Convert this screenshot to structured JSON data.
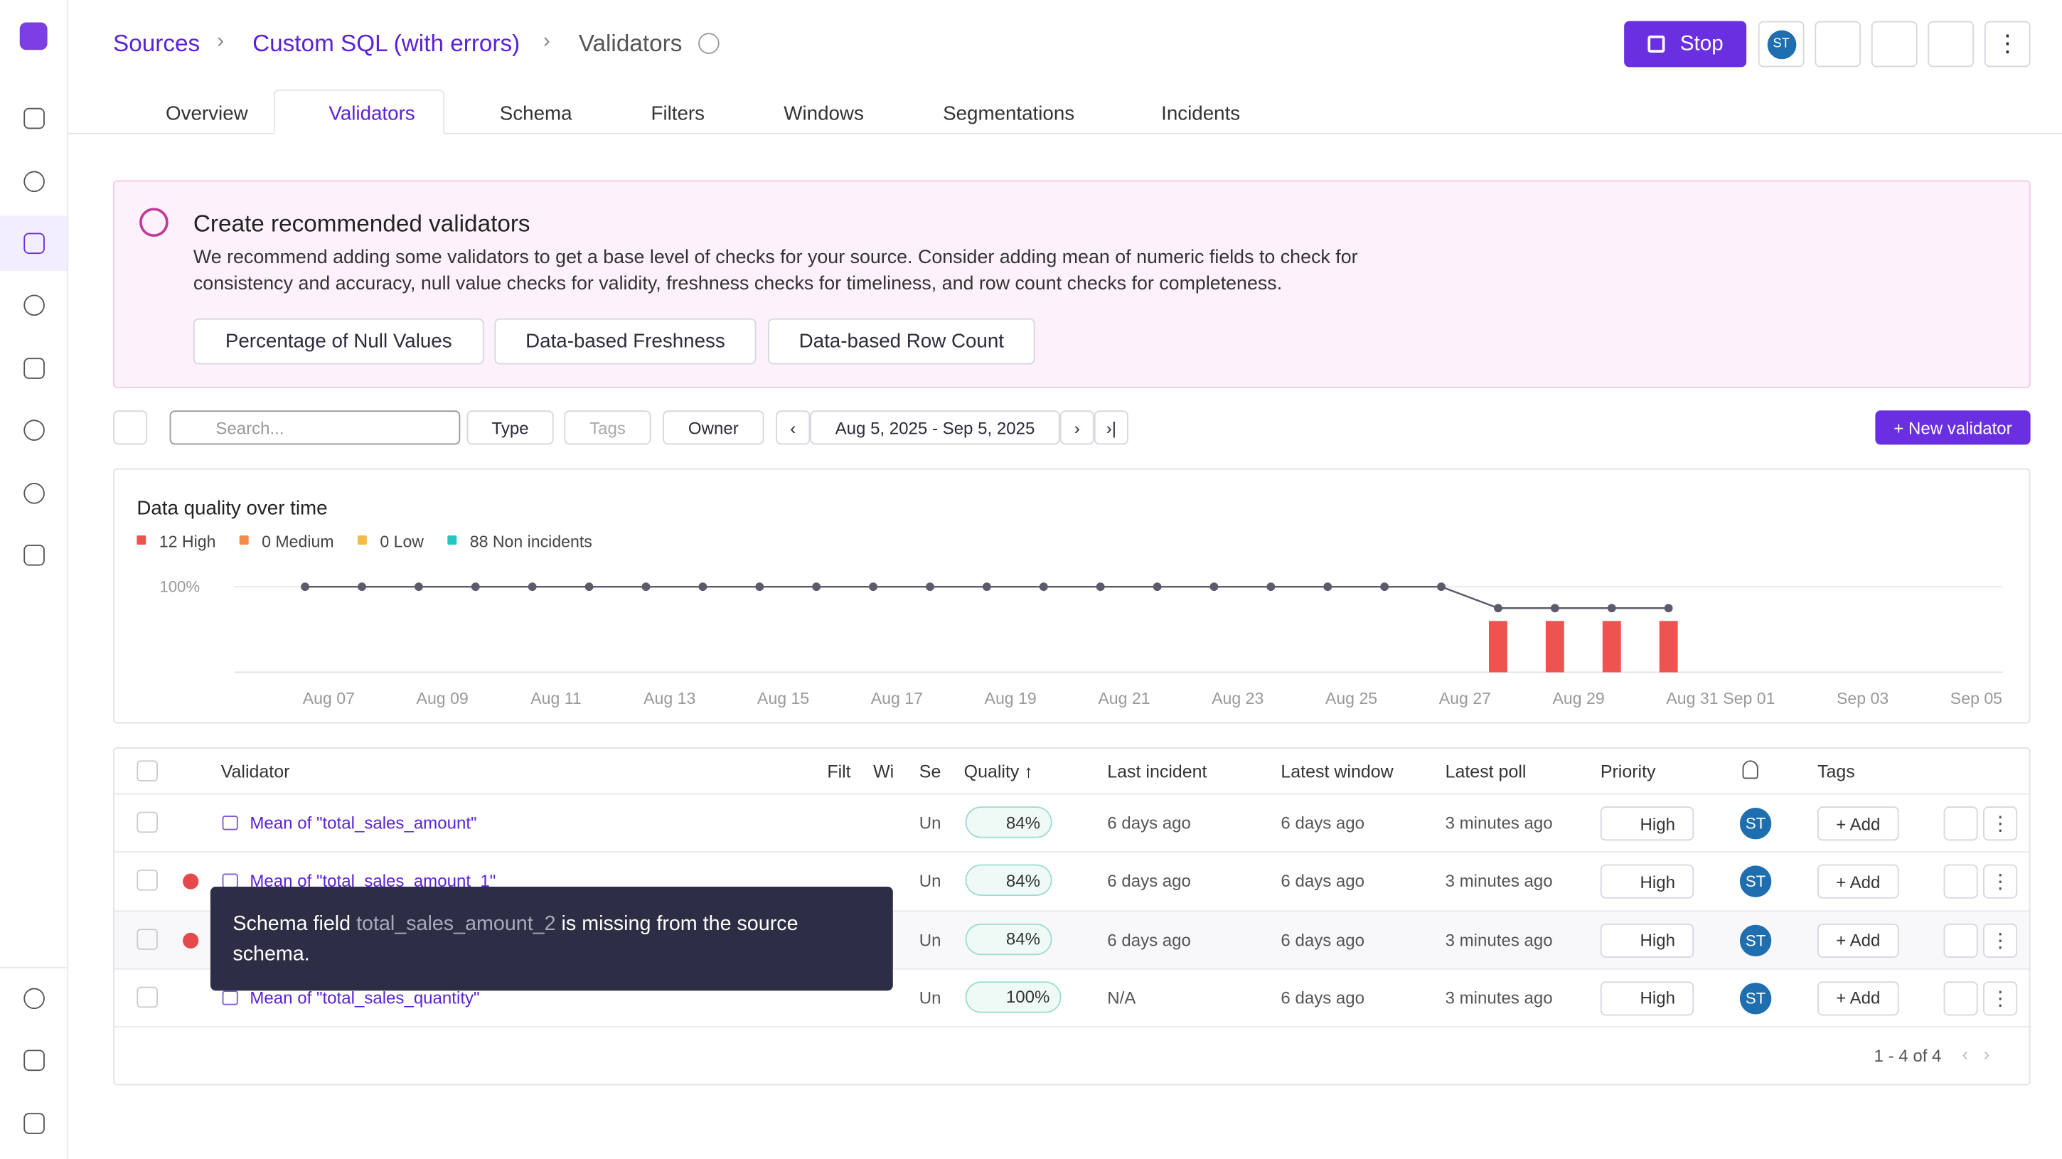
{
  "breadcrumb": [
    "Sources",
    "Custom SQL (with errors)",
    "Validators"
  ],
  "header_buttons": {
    "stop": "Stop",
    "avatar": "ST"
  },
  "tabs": [
    "Overview",
    "Validators",
    "Schema",
    "Filters",
    "Windows",
    "Segmentations",
    "Incidents"
  ],
  "banner": {
    "title": "Create recommended validators",
    "text": "We recommend adding some validators to get a base level of checks for your source. Consider adding mean of numeric fields to check for consistency and accuracy, null value checks for validity, freshness checks for timeliness, and row count checks for completeness.",
    "buttons": [
      "Percentage of Null Values",
      "Data-based Freshness",
      "Data-based Row Count"
    ]
  },
  "toolbar": {
    "search": "Search...",
    "type": "Type",
    "tags": "Tags",
    "owner": "Owner",
    "range": "Aug 5, 2025 - Sep 5, 2025",
    "new": "+ New validator"
  },
  "chart_data": {
    "type": "line",
    "title": "Data quality over time",
    "legend": [
      {
        "label": "12 High",
        "color": "#ef5350"
      },
      {
        "label": "0 Medium",
        "color": "#f28c4b"
      },
      {
        "label": "0 Low",
        "color": "#f6b94a"
      },
      {
        "label": "88 Non incidents",
        "color": "#26c6c0"
      }
    ],
    "x": [
      "Aug 07",
      "Aug 08",
      "Aug 09",
      "Aug 10",
      "Aug 11",
      "Aug 12",
      "Aug 13",
      "Aug 14",
      "Aug 15",
      "Aug 16",
      "Aug 17",
      "Aug 18",
      "Aug 19",
      "Aug 20",
      "Aug 21",
      "Aug 22",
      "Aug 23",
      "Aug 24",
      "Aug 25",
      "Aug 26",
      "Aug 27",
      "Aug 28",
      "Aug 29",
      "Aug 30",
      "Aug 31"
    ],
    "series": [
      {
        "name": "Quality",
        "color": "#5b5b6b",
        "values": [
          100,
          100,
          100,
          100,
          100,
          100,
          100,
          100,
          100,
          100,
          100,
          100,
          100,
          100,
          100,
          100,
          100,
          100,
          100,
          100,
          100,
          75,
          75,
          75,
          75
        ]
      },
      {
        "name": "High",
        "color": "#ef5350",
        "type": "bar",
        "axis": "y2",
        "values": [
          null,
          null,
          null,
          null,
          null,
          null,
          null,
          null,
          null,
          null,
          null,
          null,
          null,
          null,
          null,
          null,
          null,
          null,
          null,
          null,
          null,
          3,
          3,
          3,
          3
        ]
      }
    ],
    "ylim": [
      0,
      100
    ],
    "yticks": [
      {
        "value": 100,
        "label": "100%"
      }
    ],
    "y2lim": [
      0,
      5
    ],
    "xticks": [
      "Aug 07",
      "Aug 09",
      "Aug 11",
      "Aug 13",
      "Aug 15",
      "Aug 17",
      "Aug 19",
      "Aug 21",
      "Aug 23",
      "Aug 25",
      "Aug 27",
      "Aug 29",
      "Aug 31",
      "Sep 01",
      "Sep 03",
      "Sep 05"
    ]
  },
  "table": {
    "columns": [
      "Validator",
      "Filt",
      "Wi",
      "Se",
      "Quality ↑",
      "Last incident",
      "Latest window",
      "Latest poll",
      "Priority",
      "Tags"
    ],
    "rows": [
      {
        "name": "Mean of \"total_sales_amount\"",
        "seg": "Un",
        "quality": "84%",
        "incident": "6 days ago",
        "window": "6 days ago",
        "poll": "3 minutes ago",
        "priority": "High",
        "owner": "ST",
        "tag": "+ Add"
      },
      {
        "name": "Mean of \"total_sales_amount_1\"",
        "seg": "Un",
        "quality": "84%",
        "incident": "6 days ago",
        "window": "6 days ago",
        "poll": "3 minutes ago",
        "priority": "High",
        "owner": "ST",
        "tag": "+ Add"
      },
      {
        "seg": "Un",
        "quality": "84%",
        "incident": "6 days ago",
        "window": "6 days ago",
        "poll": "3 minutes ago",
        "priority": "High",
        "owner": "ST",
        "tag": "+ Add"
      },
      {
        "name": "Mean of \"total_sales_quantity\"",
        "seg": "Un",
        "quality": "100%",
        "incident": "N/A",
        "window": "6 days ago",
        "poll": "3 minutes ago",
        "priority": "High",
        "owner": "ST",
        "tag": "+ Add"
      }
    ],
    "pagination": "1 - 4 of 4"
  },
  "tooltip": {
    "before": "Schema field ",
    "field": "total_sales_amount_2",
    "after": " is missing from the source schema."
  }
}
